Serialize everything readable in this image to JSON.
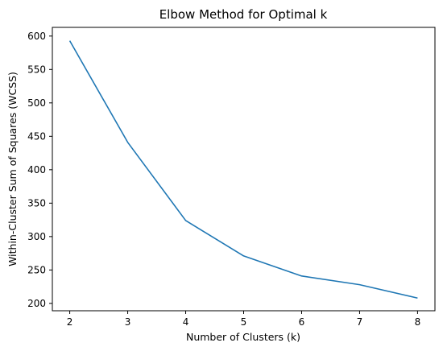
{
  "chart_data": {
    "type": "line",
    "title": "Elbow Method for Optimal k",
    "xlabel": "Number of Clusters (k)",
    "ylabel": "Within-Cluster Sum of Squares (WCSS)",
    "x": [
      2,
      3,
      4,
      5,
      6,
      7,
      8
    ],
    "xticks": [
      2,
      3,
      4,
      5,
      6,
      7,
      8
    ],
    "yticks": [
      200,
      250,
      300,
      350,
      400,
      450,
      500,
      550,
      600
    ],
    "xlim": [
      1.7,
      8.3
    ],
    "ylim": [
      189,
      613
    ],
    "grid": false,
    "series": [
      {
        "values": [
          593,
          441,
          324,
          271,
          241,
          228,
          208
        ],
        "color": "#1f77b4"
      }
    ]
  }
}
